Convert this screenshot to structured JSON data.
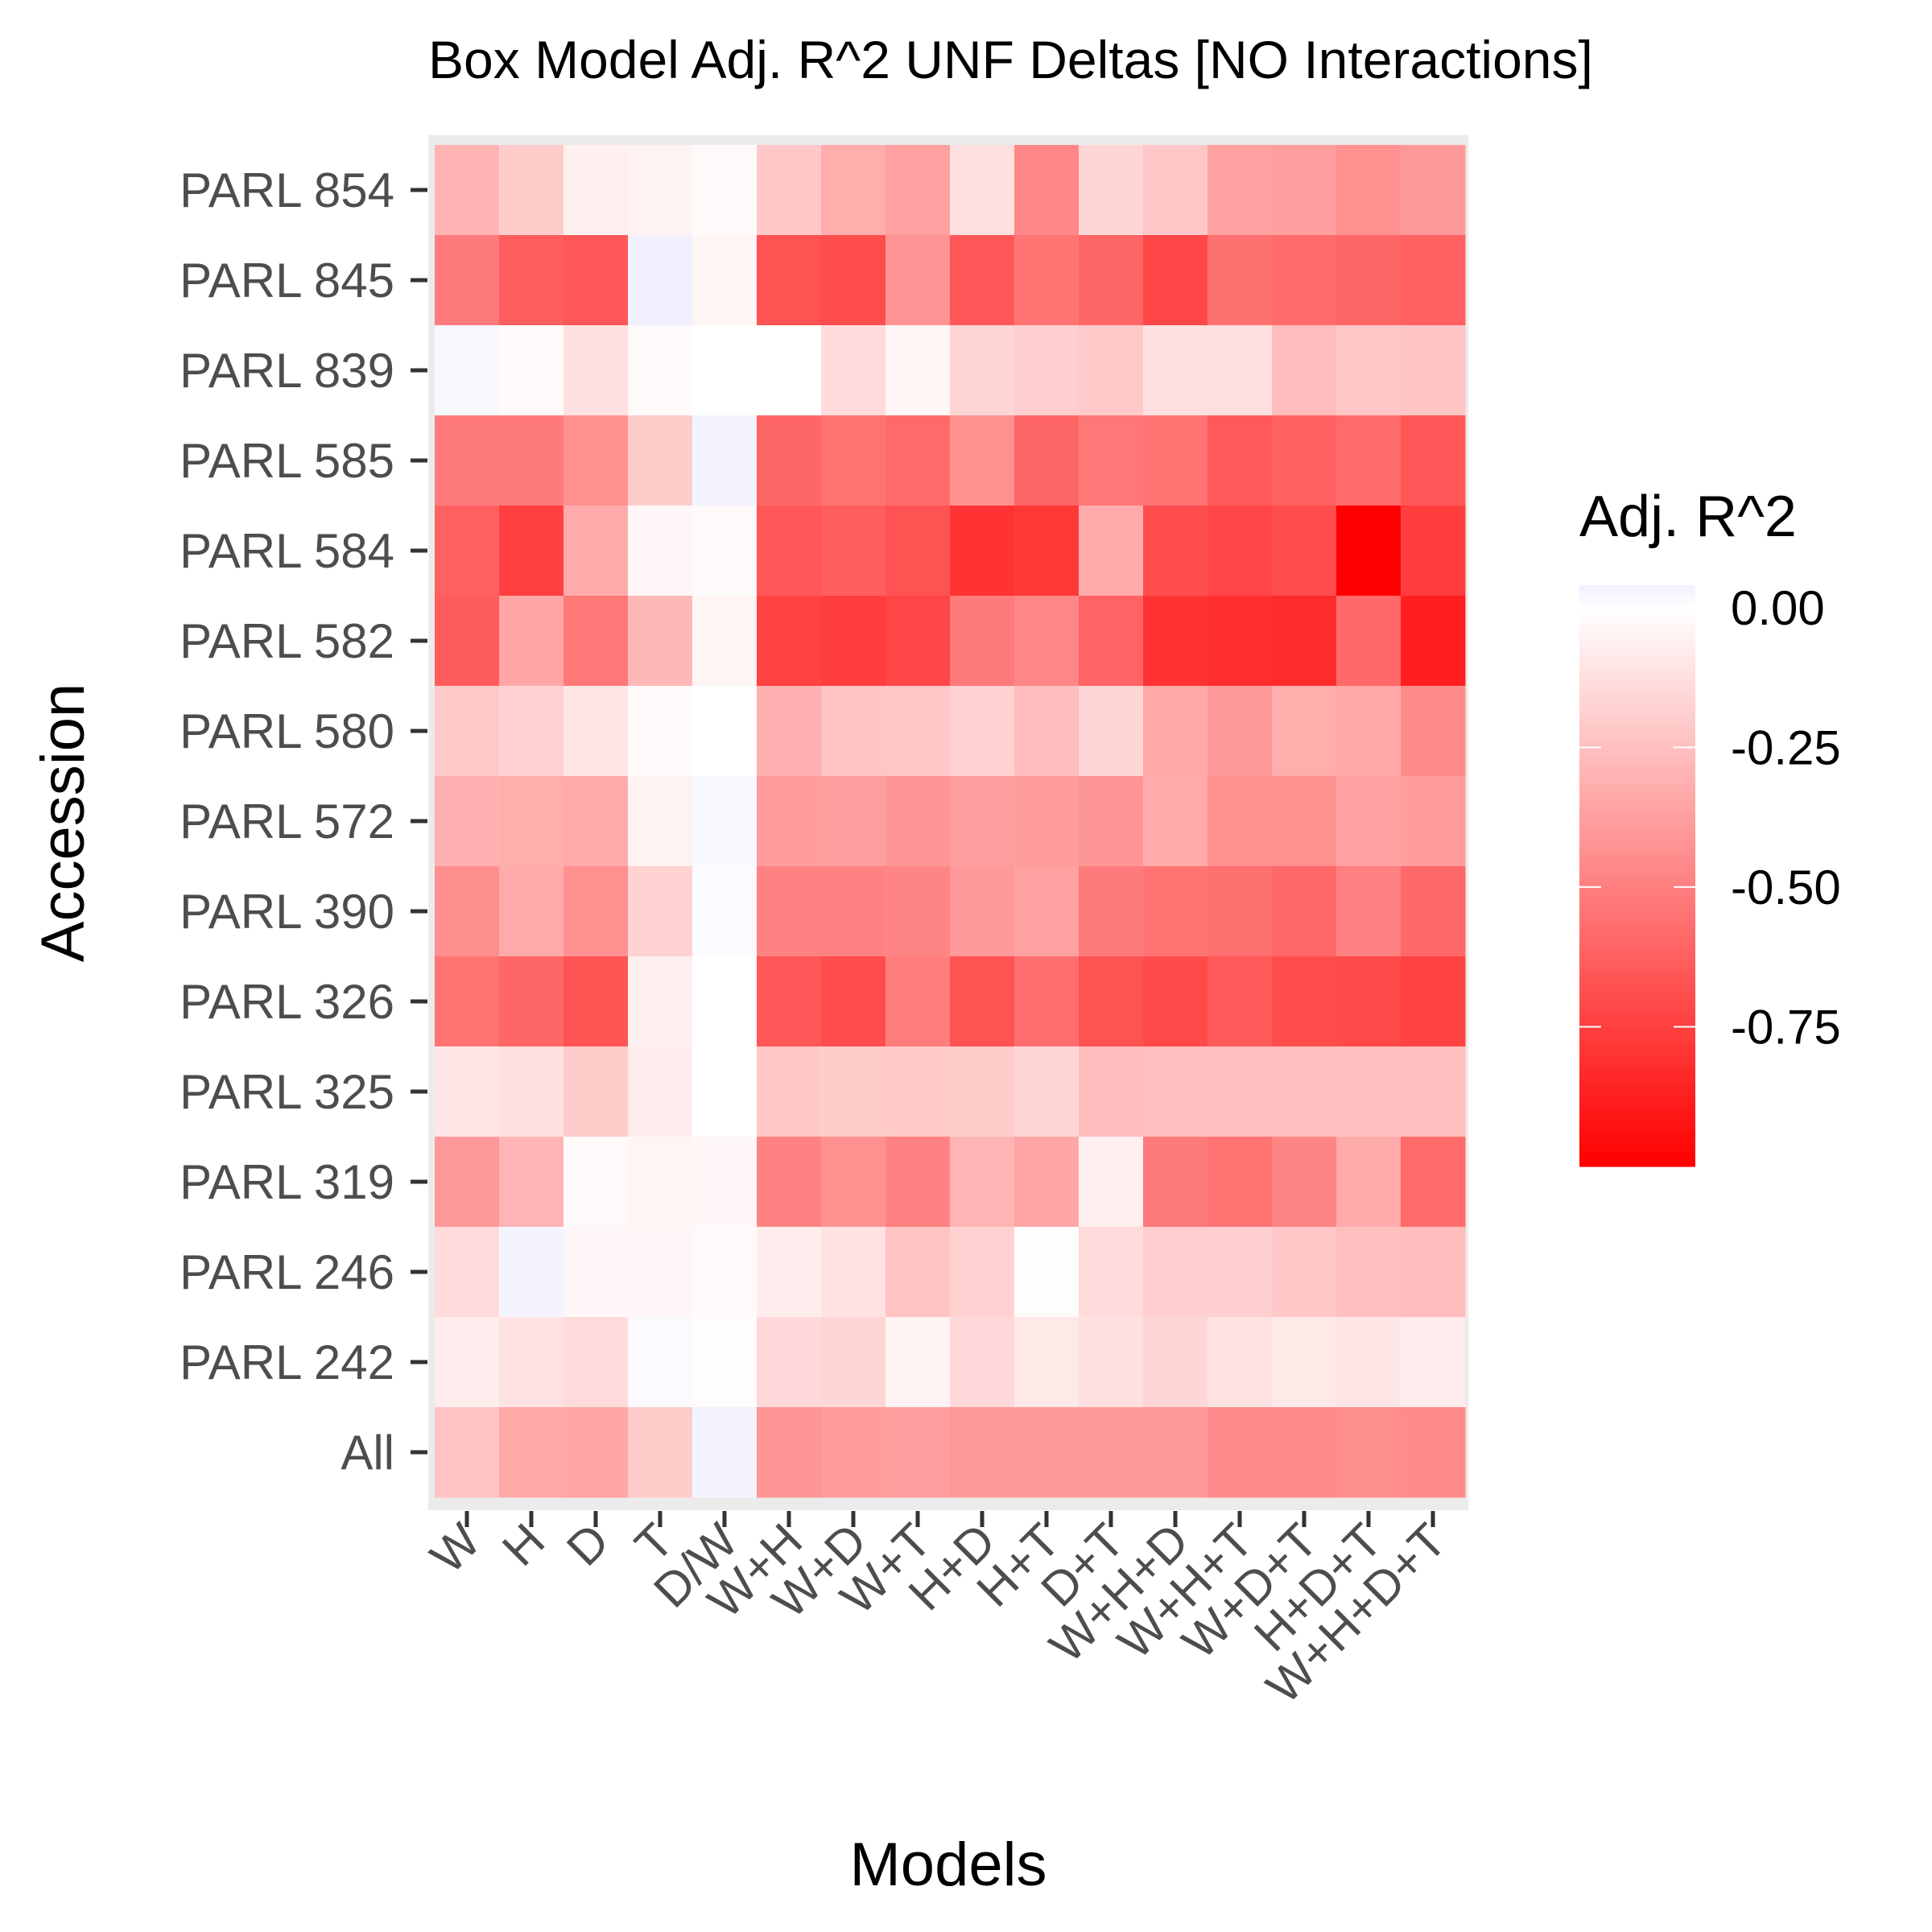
{
  "chart_data": {
    "type": "heatmap",
    "title": "Box Model Adj. R^2 UNF Deltas [NO Interactions]",
    "xlabel": "Models",
    "ylabel": "Accession",
    "x_categories": [
      "W",
      "H",
      "D",
      "T",
      "D/W",
      "W+H",
      "W+D",
      "W+T",
      "H+D",
      "H+T",
      "D+T",
      "W+H+D",
      "W+H+T",
      "W+D+T",
      "H+D+T",
      "W+H+D+T"
    ],
    "y_categories": [
      "PARL 854",
      "PARL 845",
      "PARL 839",
      "PARL 585",
      "PARL 584",
      "PARL 582",
      "PARL 580",
      "PARL 572",
      "PARL 390",
      "PARL 326",
      "PARL 325",
      "PARL 319",
      "PARL 246",
      "PARL 242",
      "All"
    ],
    "values": [
      [
        -0.3,
        -0.2,
        -0.06,
        -0.05,
        -0.02,
        -0.22,
        -0.32,
        -0.37,
        -0.12,
        -0.47,
        -0.16,
        -0.22,
        -0.37,
        -0.38,
        -0.43,
        -0.4
      ],
      [
        -0.52,
        -0.63,
        -0.66,
        0.04,
        -0.04,
        -0.68,
        -0.7,
        -0.42,
        -0.66,
        -0.55,
        -0.6,
        -0.72,
        -0.56,
        -0.58,
        -0.6,
        -0.62
      ],
      [
        0.02,
        -0.02,
        -0.12,
        -0.02,
        0.0,
        0.0,
        -0.14,
        -0.04,
        -0.17,
        -0.19,
        -0.21,
        -0.12,
        -0.13,
        -0.26,
        -0.22,
        -0.23
      ],
      [
        -0.52,
        -0.52,
        -0.43,
        -0.2,
        0.03,
        -0.6,
        -0.55,
        -0.58,
        -0.43,
        -0.6,
        -0.53,
        -0.55,
        -0.65,
        -0.62,
        -0.58,
        -0.66
      ],
      [
        -0.62,
        -0.75,
        -0.33,
        -0.03,
        -0.02,
        -0.66,
        -0.63,
        -0.68,
        -0.8,
        -0.78,
        -0.33,
        -0.7,
        -0.73,
        -0.7,
        -1.0,
        -0.76
      ],
      [
        -0.64,
        -0.35,
        -0.53,
        -0.28,
        -0.04,
        -0.74,
        -0.76,
        -0.73,
        -0.52,
        -0.47,
        -0.61,
        -0.8,
        -0.82,
        -0.83,
        -0.59,
        -0.88
      ],
      [
        -0.21,
        -0.18,
        -0.1,
        -0.02,
        0.0,
        -0.31,
        -0.23,
        -0.22,
        -0.18,
        -0.26,
        -0.16,
        -0.34,
        -0.4,
        -0.32,
        -0.34,
        -0.45
      ],
      [
        -0.31,
        -0.32,
        -0.33,
        -0.05,
        0.02,
        -0.39,
        -0.38,
        -0.41,
        -0.38,
        -0.39,
        -0.41,
        -0.33,
        -0.43,
        -0.43,
        -0.37,
        -0.39
      ],
      [
        -0.44,
        -0.33,
        -0.43,
        -0.18,
        0.01,
        -0.49,
        -0.49,
        -0.48,
        -0.4,
        -0.37,
        -0.52,
        -0.55,
        -0.56,
        -0.59,
        -0.5,
        -0.59
      ],
      [
        -0.55,
        -0.6,
        -0.67,
        -0.06,
        0.0,
        -0.66,
        -0.7,
        -0.51,
        -0.68,
        -0.57,
        -0.68,
        -0.71,
        -0.65,
        -0.7,
        -0.71,
        -0.74
      ],
      [
        -0.1,
        -0.12,
        -0.2,
        -0.07,
        0.0,
        -0.22,
        -0.2,
        -0.21,
        -0.2,
        -0.16,
        -0.26,
        -0.25,
        -0.25,
        -0.25,
        -0.25,
        -0.25
      ],
      [
        -0.4,
        -0.29,
        -0.02,
        -0.04,
        -0.03,
        -0.49,
        -0.43,
        -0.49,
        -0.29,
        -0.35,
        -0.06,
        -0.52,
        -0.55,
        -0.48,
        -0.33,
        -0.58
      ],
      [
        -0.14,
        0.03,
        -0.03,
        -0.03,
        -0.02,
        -0.07,
        -0.11,
        -0.23,
        -0.18,
        -0.01,
        -0.14,
        -0.19,
        -0.19,
        -0.22,
        -0.25,
        -0.26
      ],
      [
        -0.07,
        -0.11,
        -0.14,
        0.01,
        -0.01,
        -0.15,
        -0.16,
        -0.05,
        -0.15,
        -0.09,
        -0.12,
        -0.16,
        -0.11,
        -0.09,
        -0.1,
        -0.08
      ],
      [
        -0.23,
        -0.34,
        -0.35,
        -0.2,
        0.03,
        -0.41,
        -0.39,
        -0.38,
        -0.4,
        -0.4,
        -0.4,
        -0.4,
        -0.45,
        -0.45,
        -0.44,
        -0.45
      ]
    ],
    "legend": {
      "title": "Adj. R^2",
      "breaks": [
        0,
        -0.25,
        -0.5,
        -0.75
      ],
      "labels": [
        "0.00",
        "-0.25",
        "-0.50",
        "-0.75"
      ],
      "range": [
        -1.0,
        0.04
      ],
      "placement": "right"
    },
    "colors": {
      "low": "#ff0000",
      "mid": "#ffffff",
      "high": "#f0f0ff"
    },
    "grid": true
  }
}
